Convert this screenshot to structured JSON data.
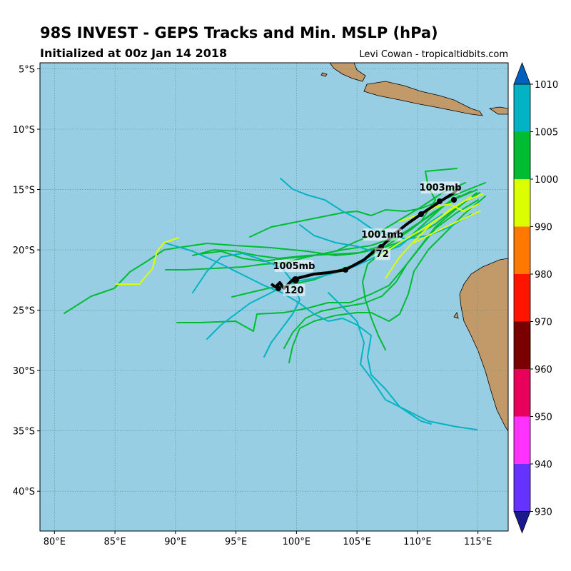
{
  "header": {
    "title": "98S INVEST - GEPS Tracks and Min. MSLP (hPa)",
    "subtitle": "Initialized at 00z Jan 14 2018",
    "credit": "Levi Cowan - tropicaltidbits.com"
  },
  "map": {
    "lon_range": [
      78.8,
      117.5
    ],
    "lat_range": [
      -43.3,
      -4.5
    ],
    "lon_ticks": [
      "80°E",
      "85°E",
      "90°E",
      "95°E",
      "100°E",
      "105°E",
      "110°E",
      "115°E"
    ],
    "lat_ticks": [
      "5°S",
      "10°S",
      "15°S",
      "20°S",
      "25°S",
      "30°S",
      "35°S",
      "40°S"
    ],
    "colors": {
      "ocean": "#97cee4",
      "land": "#c29a6a",
      "grid": "#4f8a8a"
    }
  },
  "pressure_labels": [
    {
      "text": "1003mb",
      "lon": 111.9,
      "lat": -15.1
    },
    {
      "text": "1001mb",
      "lon": 107.1,
      "lat": -19.0
    },
    {
      "text": "1005mb",
      "lon": 99.8,
      "lat": -21.6
    }
  ],
  "mean_track_hours": [
    {
      "text": "72",
      "lon": 107.1,
      "lat": -20.6
    },
    {
      "text": "120",
      "lon": 99.8,
      "lat": -23.6
    }
  ],
  "colorbar": {
    "levels": [
      "1010",
      "1005",
      "1000",
      "990",
      "980",
      "970",
      "960",
      "950",
      "940",
      "930"
    ],
    "colors": [
      "#00b4c4",
      "#00bc32",
      "#dcff00",
      "#ff7800",
      "#ff1400",
      "#780000",
      "#e8005a",
      "#ff32ff",
      "#6632ff"
    ],
    "top_arrow_color": "#0060c0",
    "bottom_arrow_color": "#1a1a8c"
  }
}
